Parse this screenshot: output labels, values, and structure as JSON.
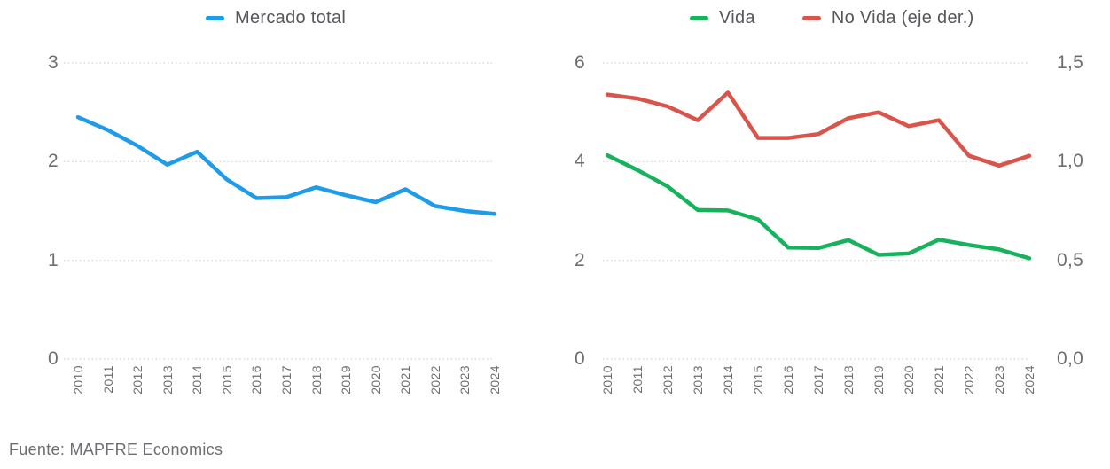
{
  "page": {
    "source_note": "Fuente: MAPFRE Economics",
    "background": "#ffffff"
  },
  "colors": {
    "mercado_total": "#1e9be9",
    "vida": "#16b25c",
    "no_vida": "#d9544a",
    "grid": "#d4d4d4",
    "axis_text": "#6d6e71",
    "legend_text": "#55575a"
  },
  "chart_data": [
    {
      "type": "line",
      "title": "",
      "legend_position": "top",
      "grid": "dotted-horizontal",
      "x": [
        "2010",
        "2011",
        "2012",
        "2013",
        "2014",
        "2015",
        "2016",
        "2017",
        "2018",
        "2019",
        "2020",
        "2021",
        "2022",
        "2023",
        "2024"
      ],
      "left_axis": {
        "min": 0,
        "max": 3,
        "tick_values": [
          0,
          1,
          2,
          3
        ],
        "tick_labels": [
          "0",
          "1",
          "2",
          "3"
        ]
      },
      "series": [
        {
          "name": "Mercado total",
          "axis": "left",
          "color": "#1e9be9",
          "values": [
            2.45,
            2.32,
            2.16,
            1.97,
            2.1,
            1.82,
            1.63,
            1.64,
            1.74,
            1.66,
            1.59,
            1.72,
            1.55,
            1.5,
            1.47
          ]
        }
      ]
    },
    {
      "type": "line",
      "title": "",
      "legend_position": "top",
      "grid": "dotted-horizontal",
      "x": [
        "2010",
        "2011",
        "2012",
        "2013",
        "2014",
        "2015",
        "2016",
        "2017",
        "2018",
        "2019",
        "2020",
        "2021",
        "2022",
        "2023",
        "2024"
      ],
      "left_axis": {
        "min": 0,
        "max": 6,
        "tick_values": [
          0,
          2,
          4,
          6
        ],
        "tick_labels": [
          "0",
          "2",
          "4",
          "6"
        ]
      },
      "right_axis": {
        "min": 0,
        "max": 1.5,
        "tick_values": [
          0,
          0.5,
          1,
          1.5
        ],
        "tick_labels": [
          "0,0",
          "0,5",
          "1,0",
          "1,5"
        ]
      },
      "series": [
        {
          "name": "Vida",
          "axis": "left",
          "color": "#16b25c",
          "values": [
            4.13,
            3.83,
            3.5,
            3.02,
            3.01,
            2.83,
            2.26,
            2.25,
            2.41,
            2.11,
            2.14,
            2.42,
            2.31,
            2.22,
            2.04
          ]
        },
        {
          "name": "No Vida (eje der.)",
          "axis": "right",
          "color": "#d9544a",
          "values": [
            1.34,
            1.32,
            1.28,
            1.21,
            1.35,
            1.12,
            1.12,
            1.14,
            1.22,
            1.25,
            1.18,
            1.21,
            1.03,
            0.98,
            1.03
          ]
        }
      ]
    }
  ]
}
